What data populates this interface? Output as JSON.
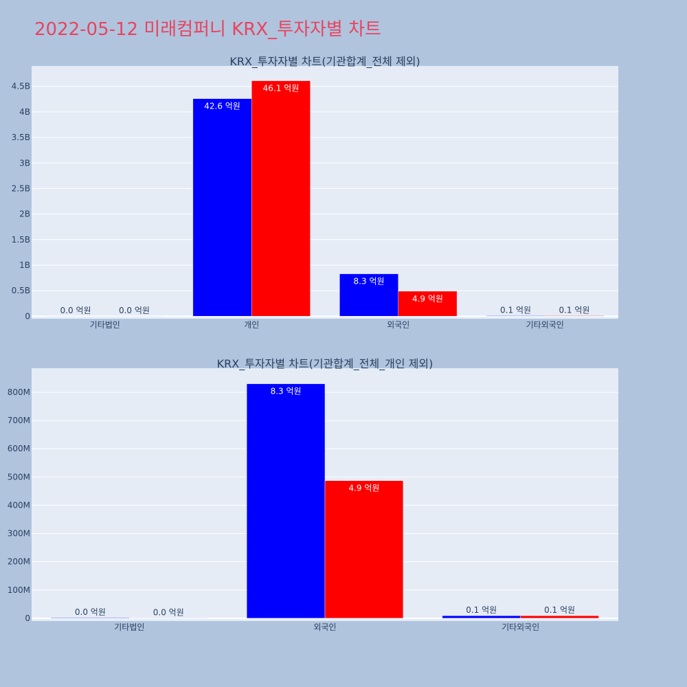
{
  "page": {
    "title": "2022-05-12 미래컴퍼니 KRX_투자자별 차트",
    "background": "#b0c4de",
    "plot_background": "#e5ecf6",
    "title_color": "#e8445f"
  },
  "chart_data": [
    {
      "type": "bar",
      "title": "KRX_투자자별 차트(기관합계_전체 제외)",
      "categories": [
        "기타법인",
        "개인",
        "외국인",
        "기타외국인"
      ],
      "series": [
        {
          "color": "#0000ff",
          "values": [
            2000000,
            4260000000,
            830000000,
            10000000
          ],
          "labels": [
            "0.0 억원",
            "42.6 억원",
            "8.3 억원",
            "0.1 억원"
          ]
        },
        {
          "color": "#ff0000",
          "values": [
            1000000,
            4610000000,
            490000000,
            10000000
          ],
          "labels": [
            "0.0 억원",
            "46.1 억원",
            "4.9 억원",
            "0.1 억원"
          ]
        }
      ],
      "ylim": [
        -50000000,
        4900000000
      ],
      "yticks": [
        0,
        500000000,
        1000000000,
        1500000000,
        2000000000,
        2500000000,
        3000000000,
        3500000000,
        4000000000,
        4500000000
      ],
      "ytick_labels": [
        "0",
        "0.5B",
        "1B",
        "1.5B",
        "2B",
        "2.5B",
        "3B",
        "3.5B",
        "4B",
        "4.5B"
      ],
      "grid": true,
      "xlabel": "",
      "ylabel": ""
    },
    {
      "type": "bar",
      "title": "KRX_투자자별 차트(기관합계_전체_개인 제외)",
      "categories": [
        "기타법인",
        "외국인",
        "기타외국인"
      ],
      "series": [
        {
          "color": "#0000ff",
          "values": [
            2000000,
            830000000,
            9000000
          ],
          "labels": [
            "0.0 억원",
            "8.3 억원",
            "0.1 억원"
          ]
        },
        {
          "color": "#ff0000",
          "values": [
            1000000,
            487000000,
            9000000
          ],
          "labels": [
            "0.0 억원",
            "4.9 억원",
            "0.1 억원"
          ]
        }
      ],
      "ylim": [
        -10000000,
        885000000
      ],
      "yticks": [
        0,
        100000000,
        200000000,
        300000000,
        400000000,
        500000000,
        600000000,
        700000000,
        800000000
      ],
      "ytick_labels": [
        "0",
        "100M",
        "200M",
        "300M",
        "400M",
        "500M",
        "600M",
        "700M",
        "800M"
      ],
      "grid": true,
      "xlabel": "",
      "ylabel": ""
    }
  ]
}
